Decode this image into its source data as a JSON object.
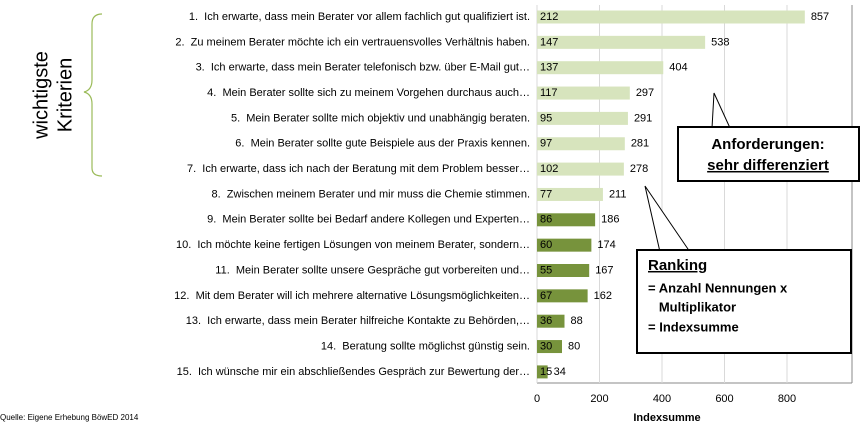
{
  "chart_data": {
    "type": "bar",
    "categories": [
      "1.  Ich erwarte, dass mein Berater vor allem fachlich gut qualifiziert ist.",
      "2.  Zu meinem Berater möchte ich ein vertrauensvolles Verhältnis haben.",
      "3.  Ich erwarte, dass mein Berater telefonisch bzw. über E-Mail gut…",
      "4.  Mein Berater sollte sich zu meinem Vorgehen durchaus auch…",
      "5.  Mein Berater sollte mich objektiv und unabhängig beraten.",
      "6.  Mein Berater sollte gute Beispiele aus der Praxis kennen.",
      "7.  Ich erwarte, dass ich nach der Beratung mit dem Problem besser…",
      "8.  Zwischen meinem Berater und mir muss die Chemie stimmen.",
      "9.  Mein Berater sollte bei Bedarf andere Kollegen und Experten…",
      "10.  Ich möchte keine fertigen Lösungen von meinem Berater, sondern…",
      "11.  Mein Berater sollte unsere Gespräche gut vorbereiten und…",
      "12.  Mit dem Berater will ich mehrere alternative Lösungsmöglichkeiten…",
      "13.  Ich erwarte, dass mein Berater hilfreiche Kontakte zu Behörden,…",
      "14.  Beratung sollte möglichst günstig sein.",
      "15.  Ich wünsche mir ein abschließendes Gespräch zur Bewertung der…"
    ],
    "values": [
      857,
      538,
      404,
      297,
      291,
      281,
      278,
      211,
      186,
      174,
      167,
      162,
      88,
      80,
      34
    ],
    "mentions": [
      212,
      147,
      137,
      117,
      95,
      97,
      102,
      77,
      86,
      60,
      55,
      67,
      36,
      30,
      15
    ],
    "colors": [
      "#d7e4bd",
      "#d7e4bd",
      "#d7e4bd",
      "#d7e4bd",
      "#d7e4bd",
      "#d7e4bd",
      "#d7e4bd",
      "#d7e4bd",
      "#77933c",
      "#77933c",
      "#77933c",
      "#77933c",
      "#77933c",
      "#77933c",
      "#77933c"
    ],
    "xlim": [
      0,
      1000
    ],
    "xticks": [
      0,
      200,
      400,
      600,
      800
    ],
    "grid": true,
    "xlabel": "Indexsumme",
    "source": "Quelle: Eigene Erhebung BöwED 2014",
    "annotations": {
      "bracket_label": [
        "wichtigste",
        "Kriterien"
      ],
      "requirements": [
        "Anforderungen:",
        "sehr differenziert"
      ],
      "ranking_title": "Ranking",
      "ranking_lines": [
        "= Anzahl Nennungen x",
        "   Multiplikator",
        "= Indexsumme"
      ]
    }
  }
}
